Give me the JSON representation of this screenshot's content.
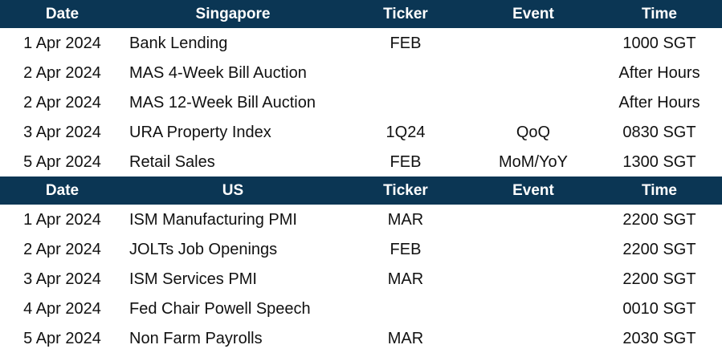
{
  "sections": [
    {
      "headers": {
        "date": "Date",
        "region": "Singapore",
        "ticker": "Ticker",
        "event": "Event",
        "time": "Time"
      },
      "rows": [
        {
          "date": "1 Apr 2024",
          "name": "Bank Lending",
          "ticker": "FEB",
          "event": "",
          "time": "1000 SGT"
        },
        {
          "date": "2 Apr 2024",
          "name": "MAS 4-Week Bill Auction",
          "ticker": "",
          "event": "",
          "time": "After Hours"
        },
        {
          "date": "2 Apr 2024",
          "name": "MAS 12-Week Bill Auction",
          "ticker": "",
          "event": "",
          "time": "After Hours"
        },
        {
          "date": "3 Apr 2024",
          "name": "URA Property Index",
          "ticker": "1Q24",
          "event": "QoQ",
          "time": "0830 SGT"
        },
        {
          "date": "5 Apr 2024",
          "name": "Retail Sales",
          "ticker": "FEB",
          "event": "MoM/YoY",
          "time": "1300 SGT"
        }
      ]
    },
    {
      "headers": {
        "date": "Date",
        "region": "US",
        "ticker": "Ticker",
        "event": "Event",
        "time": "Time"
      },
      "rows": [
        {
          "date": "1 Apr 2024",
          "name": "ISM Manufacturing PMI",
          "ticker": "MAR",
          "event": "",
          "time": "2200 SGT"
        },
        {
          "date": "2 Apr 2024",
          "name": "JOLTs Job Openings",
          "ticker": "FEB",
          "event": "",
          "time": "2200 SGT"
        },
        {
          "date": "3 Apr 2024",
          "name": "ISM Services PMI",
          "ticker": "MAR",
          "event": "",
          "time": "2200 SGT"
        },
        {
          "date": "4 Apr 2024",
          "name": "Fed Chair Powell Speech",
          "ticker": "",
          "event": "",
          "time": "0010 SGT"
        },
        {
          "date": "5 Apr 2024",
          "name": "Non Farm Payrolls",
          "ticker": "MAR",
          "event": "",
          "time": "2030 SGT"
        }
      ]
    }
  ]
}
